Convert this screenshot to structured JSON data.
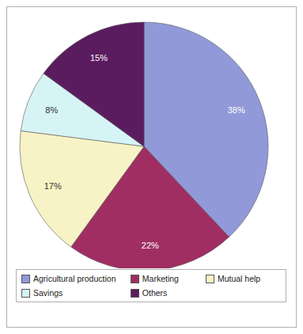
{
  "chart_data": {
    "type": "pie",
    "categories": [
      "Agricultural production",
      "Marketing",
      "Mutual help",
      "Savings",
      "Others"
    ],
    "values": [
      38,
      22,
      17,
      8,
      15
    ],
    "value_labels": [
      "38%",
      "22%",
      "17%",
      "8%",
      "15%"
    ],
    "colors": [
      "#9199d8",
      "#a02e62",
      "#f8f3c6",
      "#d6f4f6",
      "#5b1c5f"
    ],
    "data_labels": true,
    "legend": "bottom"
  }
}
